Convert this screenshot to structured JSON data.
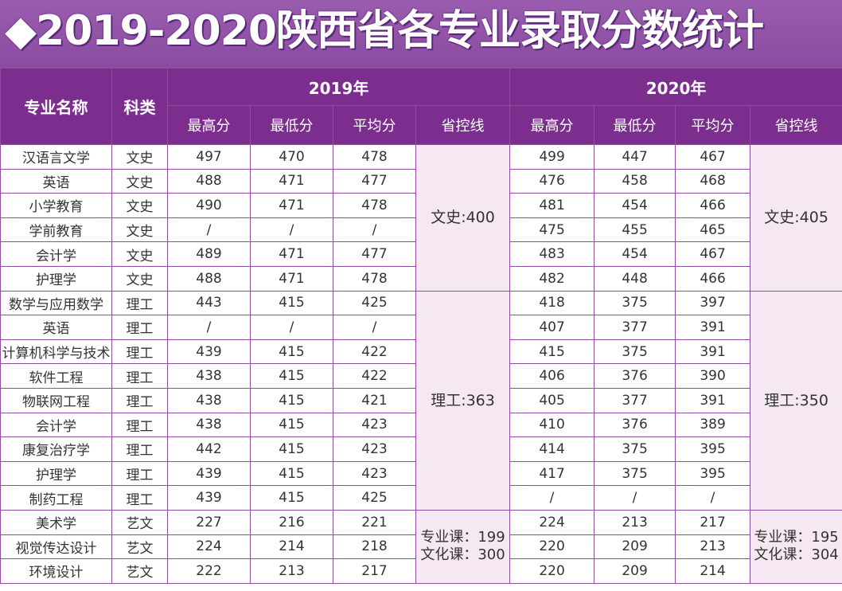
{
  "title": "◆2019-2020陕西省各专业录取分数统计",
  "headers": {
    "major": "专业名称",
    "category": "科类",
    "year_2019": "2019年",
    "year_2020": "2020年",
    "max": "最高分",
    "min": "最低分",
    "avg": "平均分",
    "control": "省控线"
  },
  "control_lines": {
    "y2019": {
      "wen": "文史:400",
      "li": "理工:363",
      "yi_1": "专业课：199",
      "yi_2": "文化课：300"
    },
    "y2020": {
      "wen": "文史:405",
      "li": "理工:350",
      "yi_1": "专业课：195",
      "yi_2": "文化课：304"
    }
  },
  "rows": [
    {
      "major": "汉语言文学",
      "cat": "文史",
      "a1": "497",
      "a2": "470",
      "a3": "478",
      "b1": "499",
      "b2": "447",
      "b3": "467"
    },
    {
      "major": "英语",
      "cat": "文史",
      "a1": "488",
      "a2": "471",
      "a3": "477",
      "b1": "476",
      "b2": "458",
      "b3": "468"
    },
    {
      "major": "小学教育",
      "cat": "文史",
      "a1": "490",
      "a2": "471",
      "a3": "478",
      "b1": "481",
      "b2": "454",
      "b3": "466"
    },
    {
      "major": "学前教育",
      "cat": "文史",
      "a1": "/",
      "a2": "/",
      "a3": "/",
      "b1": "475",
      "b2": "455",
      "b3": "465"
    },
    {
      "major": "会计学",
      "cat": "文史",
      "a1": "489",
      "a2": "471",
      "a3": "477",
      "b1": "483",
      "b2": "454",
      "b3": "467"
    },
    {
      "major": "护理学",
      "cat": "文史",
      "a1": "488",
      "a2": "471",
      "a3": "478",
      "b1": "482",
      "b2": "448",
      "b3": "466"
    },
    {
      "major": "数学与应用数学",
      "cat": "理工",
      "a1": "443",
      "a2": "415",
      "a3": "425",
      "b1": "418",
      "b2": "375",
      "b3": "397"
    },
    {
      "major": "英语",
      "cat": "理工",
      "a1": "/",
      "a2": "/",
      "a3": "/",
      "b1": "407",
      "b2": "377",
      "b3": "391"
    },
    {
      "major": "计算机科学与技术",
      "cat": "理工",
      "a1": "439",
      "a2": "415",
      "a3": "422",
      "b1": "415",
      "b2": "375",
      "b3": "391"
    },
    {
      "major": "软件工程",
      "cat": "理工",
      "a1": "438",
      "a2": "415",
      "a3": "422",
      "b1": "406",
      "b2": "376",
      "b3": "390"
    },
    {
      "major": "物联网工程",
      "cat": "理工",
      "a1": "438",
      "a2": "415",
      "a3": "421",
      "b1": "405",
      "b2": "377",
      "b3": "391"
    },
    {
      "major": "会计学",
      "cat": "理工",
      "a1": "438",
      "a2": "415",
      "a3": "423",
      "b1": "410",
      "b2": "376",
      "b3": "389"
    },
    {
      "major": "康复治疗学",
      "cat": "理工",
      "a1": "442",
      "a2": "415",
      "a3": "423",
      "b1": "414",
      "b2": "375",
      "b3": "395"
    },
    {
      "major": "护理学",
      "cat": "理工",
      "a1": "439",
      "a2": "415",
      "a3": "423",
      "b1": "417",
      "b2": "375",
      "b3": "395"
    },
    {
      "major": "制药工程",
      "cat": "理工",
      "a1": "439",
      "a2": "415",
      "a3": "425",
      "b1": "/",
      "b2": "/",
      "b3": "/"
    },
    {
      "major": "美术学",
      "cat": "艺文",
      "a1": "227",
      "a2": "216",
      "a3": "221",
      "b1": "224",
      "b2": "213",
      "b3": "217"
    },
    {
      "major": "视觉传达设计",
      "cat": "艺文",
      "a1": "224",
      "a2": "214",
      "a3": "218",
      "b1": "220",
      "b2": "209",
      "b3": "213"
    },
    {
      "major": "环境设计",
      "cat": "艺文",
      "a1": "222",
      "a2": "213",
      "a3": "217",
      "b1": "220",
      "b2": "209",
      "b3": "214"
    }
  ]
}
